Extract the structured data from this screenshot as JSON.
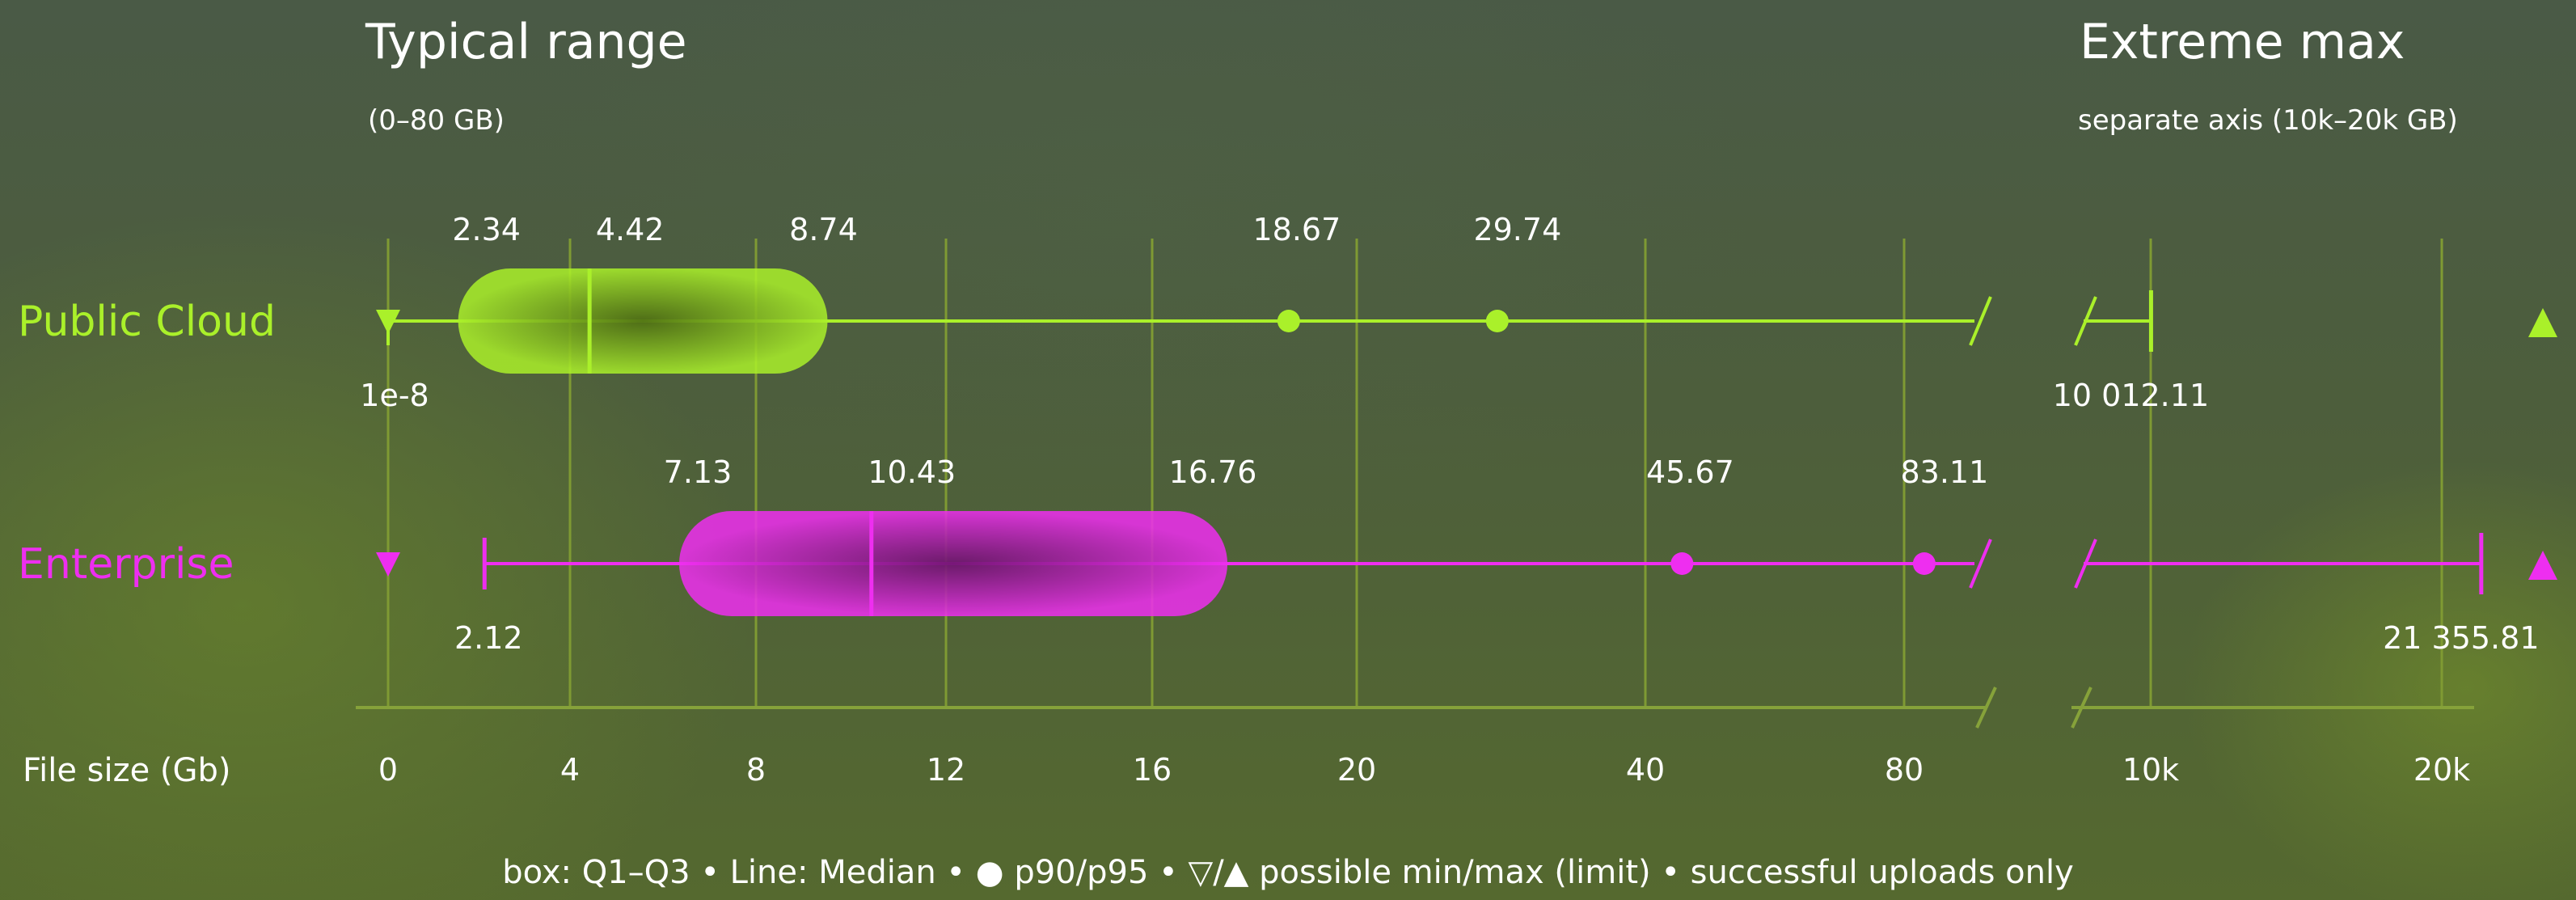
{
  "chart_data": {
    "type": "box",
    "titles": {
      "typical": "Typical range",
      "typical_sub": "(0–80 GB)",
      "extreme": "Extreme max",
      "extreme_sub": "separate axis (10k–20k GB)"
    },
    "xlabel": "File size (Gb)",
    "typical_axis": {
      "ticks": [
        0,
        4,
        8,
        12,
        16,
        20,
        40,
        80
      ],
      "tick_labels": [
        "0",
        "4",
        "8",
        "12",
        "16",
        "20",
        "40",
        "80"
      ]
    },
    "extreme_axis": {
      "ticks": [
        10000,
        20000
      ],
      "tick_labels": [
        "10k",
        "20k"
      ]
    },
    "series": [
      {
        "name": "Public  Cloud",
        "color": "#aaf02a",
        "min": 1e-08,
        "min_label": "1e-8",
        "q1": 2.34,
        "q1_label": "2.34",
        "median": 4.42,
        "median_label": "4.42",
        "q3": 8.74,
        "q3_label": "8.74",
        "p90": 18.67,
        "p90_label": "18.67",
        "p95": 29.74,
        "p95_label": "29.74",
        "max": 10012.11,
        "max_label": "10 012.11"
      },
      {
        "name": "Enterprise",
        "color": "#ee2ef0",
        "min": 2.12,
        "min_label": "2.12",
        "q1": 7.13,
        "q1_label": "7.13",
        "median": 10.43,
        "median_label": "10.43",
        "q3": 16.76,
        "q3_label": "16.76",
        "p90": 45.67,
        "p90_label": "45.67",
        "p95": 83.11,
        "p95_label": "83.11",
        "max": 21355.81,
        "max_label": "21 355.81"
      }
    ],
    "legend": [
      {
        "text": "box: Q1–Q3"
      },
      {
        "text": "Line: Median"
      },
      {
        "symbol": "●",
        "text": "p90/p95"
      },
      {
        "symbol": "▽/▲",
        "text": "possible min/max (limit)"
      },
      {
        "text": "successful uploads only"
      }
    ]
  },
  "colors": {
    "grid": "#7f9a33",
    "axis": "#86a23a",
    "text": "#ffffff"
  }
}
